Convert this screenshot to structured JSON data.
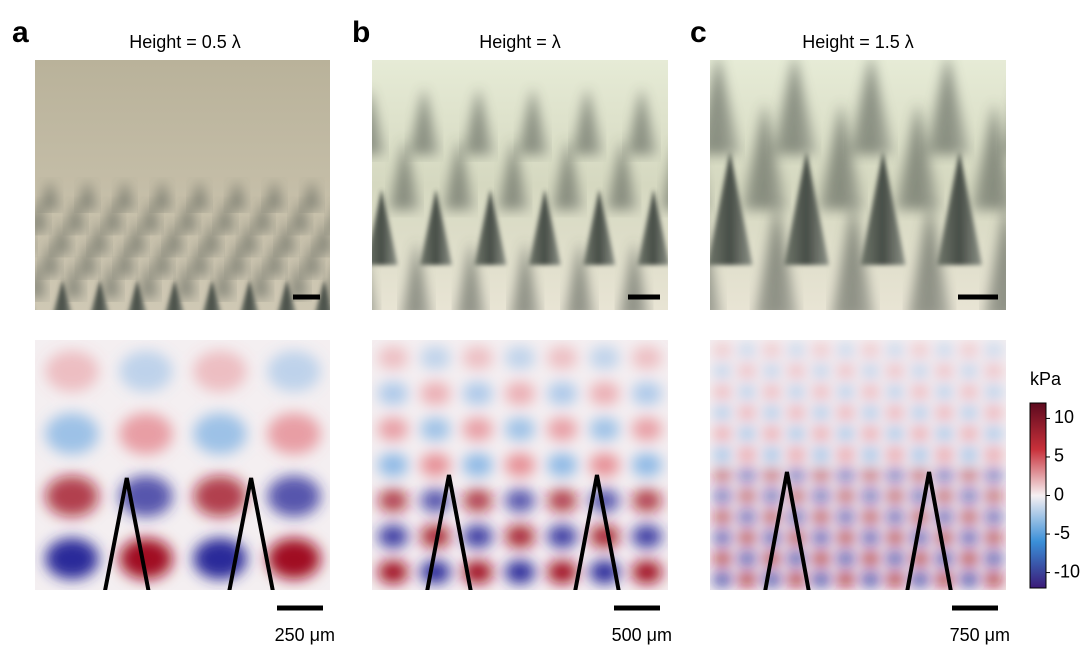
{
  "panels": [
    {
      "label": "a",
      "title": "Height = 0.5 λ",
      "scale_bar": "250 μm"
    },
    {
      "label": "b",
      "title": "Height = λ",
      "scale_bar": "500 μm"
    },
    {
      "label": "c",
      "title": "Height = 1.5 λ",
      "scale_bar": "750 μm"
    }
  ],
  "colorbar": {
    "label": "kPa",
    "lim": [
      -12,
      12
    ],
    "ticks": [
      10,
      5,
      0,
      -5,
      -10
    ]
  }
}
